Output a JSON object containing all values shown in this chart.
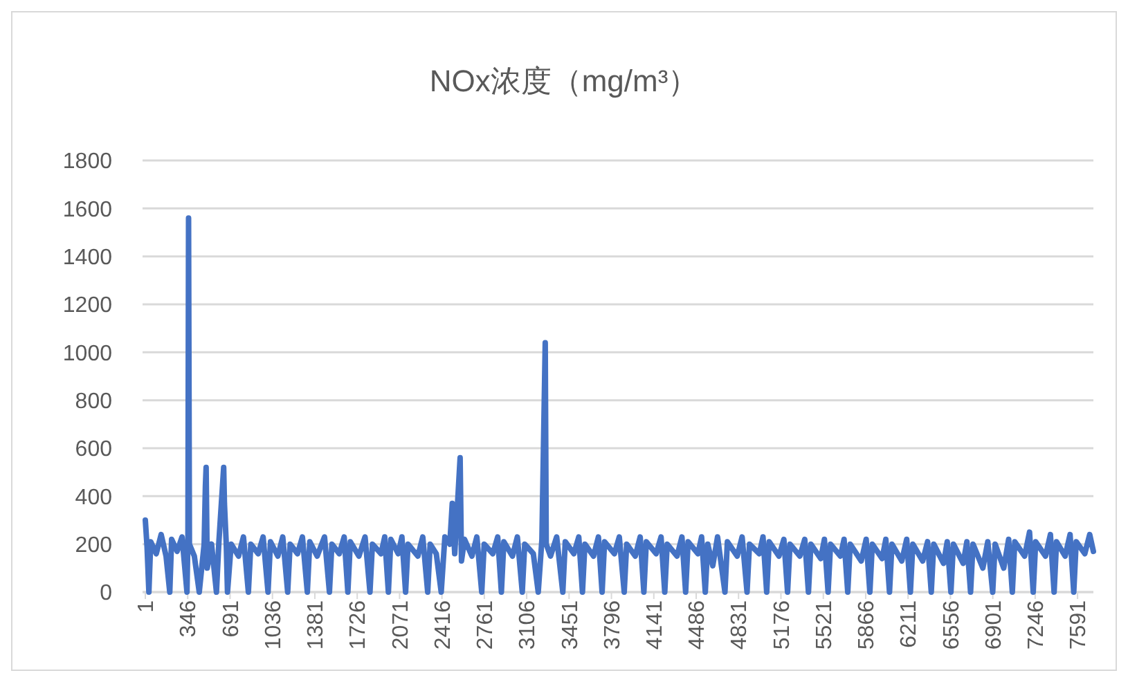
{
  "chart_data": {
    "type": "line",
    "title": "NOx浓度（mg/m³）",
    "x": [
      1,
      15,
      30,
      45,
      90,
      130,
      170,
      200,
      215,
      260,
      300,
      340,
      348,
      353,
      360,
      400,
      440,
      480,
      490,
      496,
      505,
      540,
      580,
      600,
      639,
      645,
      660,
      670,
      700,
      760,
      800,
      840,
      860,
      920,
      960,
      1000,
      1020,
      1080,
      1120,
      1160,
      1180,
      1240,
      1280,
      1320,
      1340,
      1400,
      1460,
      1500,
      1520,
      1580,
      1620,
      1650,
      1670,
      1740,
      1790,
      1830,
      1850,
      1920,
      1950,
      1980,
      2000,
      2060,
      2090,
      2120,
      2140,
      2220,
      2260,
      2300,
      2320,
      2370,
      2410,
      2440,
      2480,
      2500,
      2520,
      2564,
      2575,
      2600,
      2660,
      2700,
      2740,
      2760,
      2830,
      2870,
      2900,
      2920,
      2990,
      3030,
      3070,
      3090,
      3160,
      3200,
      3230,
      3257,
      3265,
      3300,
      3350,
      3400,
      3420,
      3490,
      3530,
      3560,
      3580,
      3650,
      3690,
      3720,
      3740,
      3820,
      3860,
      3900,
      3920,
      3990,
      4030,
      4060,
      4080,
      4160,
      4200,
      4230,
      4250,
      4330,
      4370,
      4400,
      4420,
      4500,
      4530,
      4560,
      4580,
      4621,
      4660,
      4720,
      4740,
      4820,
      4860,
      4900,
      4920,
      5000,
      5030,
      5060,
      5080,
      5160,
      5200,
      5230,
      5250,
      5330,
      5370,
      5400,
      5420,
      5500,
      5530,
      5560,
      5580,
      5660,
      5690,
      5720,
      5740,
      5830,
      5870,
      5900,
      5920,
      6000,
      6030,
      6060,
      6080,
      6160,
      6200,
      6230,
      6250,
      6330,
      6370,
      6400,
      6420,
      6500,
      6530,
      6560,
      6580,
      6660,
      6690,
      6720,
      6740,
      6820,
      6860,
      6900,
      6920,
      6990,
      7030,
      7060,
      7080,
      7160,
      7200,
      7230,
      7250,
      7330,
      7370,
      7400,
      7420,
      7490,
      7530,
      7560,
      7580,
      7650,
      7690,
      7720
    ],
    "series": [
      {
        "color": "#4472c4",
        "values": [
          300,
          190,
          0,
          210,
          160,
          240,
          150,
          0,
          220,
          170,
          230,
          0,
          230,
          1560,
          200,
          150,
          0,
          200,
          440,
          520,
          100,
          200,
          0,
          210,
          520,
          370,
          200,
          0,
          200,
          150,
          230,
          0,
          200,
          160,
          230,
          0,
          210,
          150,
          230,
          0,
          200,
          160,
          230,
          0,
          210,
          150,
          230,
          0,
          200,
          160,
          230,
          0,
          210,
          150,
          230,
          0,
          200,
          160,
          230,
          0,
          220,
          160,
          230,
          0,
          200,
          150,
          230,
          0,
          200,
          160,
          0,
          230,
          200,
          370,
          160,
          560,
          130,
          220,
          150,
          230,
          0,
          200,
          160,
          230,
          0,
          210,
          150,
          230,
          0,
          200,
          160,
          0,
          220,
          1040,
          200,
          150,
          230,
          0,
          210,
          160,
          230,
          0,
          200,
          150,
          230,
          0,
          210,
          160,
          230,
          0,
          200,
          150,
          230,
          0,
          210,
          160,
          230,
          0,
          200,
          150,
          230,
          0,
          210,
          160,
          230,
          0,
          200,
          110,
          230,
          0,
          210,
          150,
          230,
          0,
          200,
          160,
          230,
          0,
          210,
          150,
          220,
          0,
          200,
          150,
          220,
          0,
          200,
          140,
          220,
          0,
          200,
          150,
          220,
          0,
          200,
          130,
          220,
          0,
          200,
          140,
          220,
          0,
          200,
          130,
          220,
          0,
          200,
          130,
          210,
          0,
          200,
          120,
          210,
          0,
          200,
          120,
          210,
          0,
          200,
          100,
          210,
          0,
          200,
          100,
          220,
          0,
          210,
          150,
          250,
          0,
          210,
          150,
          240,
          0,
          210,
          150,
          240,
          0,
          210,
          160,
          240,
          170
        ]
      }
    ],
    "xlim": [
      1,
      7720
    ],
    "xticks": [
      1,
      346,
      691,
      1036,
      1381,
      1726,
      2071,
      2416,
      2761,
      3106,
      3451,
      3796,
      4141,
      4486,
      4831,
      5176,
      5521,
      5866,
      6211,
      6556,
      6901,
      7246,
      7591
    ],
    "ylim": [
      0,
      1800
    ],
    "yticks": [
      0,
      200,
      400,
      600,
      800,
      1000,
      1200,
      1400,
      1600,
      1800
    ],
    "grid": "y"
  }
}
